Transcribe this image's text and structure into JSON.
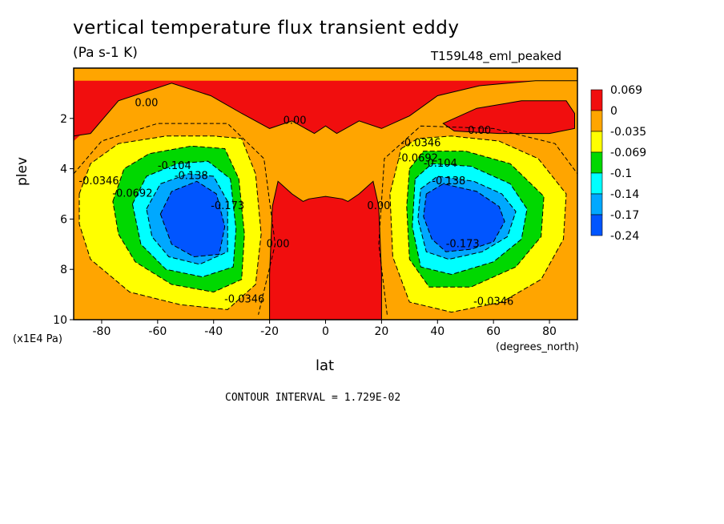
{
  "header": {
    "title": "vertical temperature flux transient eddy",
    "units": "(Pa s-1 K)",
    "run_id": "T159L48_eml_peaked"
  },
  "axes": {
    "ylabel": "plev",
    "yunit": "(x1E4 Pa)",
    "xlabel": "lat",
    "xunit": "(degrees_north)"
  },
  "footer": {
    "contour_interval": "CONTOUR INTERVAL = 1.729E-02"
  },
  "colors": {
    "red": "#f10e0e",
    "orange": "#ffa500",
    "yellow": "#ffff00",
    "green": "#00d800",
    "cyan": "#00ffff",
    "lightblue": "#00a8ff",
    "blue": "#0055ff"
  },
  "chart_data": {
    "type": "contour",
    "title": "vertical temperature flux transient eddy",
    "variable_units": "(Pa s-1 K)",
    "xlabel": "lat",
    "x_units": "(degrees_north)",
    "ylabel": "plev",
    "y_units": "(x1E4 Pa)",
    "xlim": [
      -90,
      90
    ],
    "ylim": [
      10,
      0
    ],
    "x_ticks": [
      -80,
      -60,
      -40,
      -20,
      0,
      20,
      40,
      60,
      80
    ],
    "y_ticks": [
      2,
      4,
      6,
      8,
      10
    ],
    "contour_interval": 0.01729,
    "legend": {
      "placement": "right",
      "labels": [
        "0.069",
        "0",
        "-0.035",
        "-0.069",
        "-0.1",
        "-0.14",
        "-0.17",
        "-0.24"
      ],
      "colors": [
        "#f10e0e",
        "#ffa500",
        "#ffff00",
        "#00d800",
        "#00ffff",
        "#00a8ff",
        "#0055ff"
      ]
    },
    "contour_labels": [
      {
        "text": "0.00",
        "lat": -64,
        "plev": 1.4
      },
      {
        "text": "0.00",
        "lat": -11,
        "plev": 2.1
      },
      {
        "text": "0.00",
        "lat": 55,
        "plev": 2.5
      },
      {
        "text": "0.00",
        "lat": -17,
        "plev": 7.0
      },
      {
        "text": "0.00",
        "lat": 19,
        "plev": 5.5
      },
      {
        "text": "-0.0346",
        "lat": -81,
        "plev": 4.5
      },
      {
        "text": "-0.0692",
        "lat": -69,
        "plev": 5.0
      },
      {
        "text": "-0.104",
        "lat": -54,
        "plev": 3.9
      },
      {
        "text": "-0.138",
        "lat": -48,
        "plev": 4.3
      },
      {
        "text": "-0.173",
        "lat": -35,
        "plev": 5.5
      },
      {
        "text": "-0.0346",
        "lat": -29,
        "plev": 9.2
      },
      {
        "text": "-0.0346",
        "lat": 34,
        "plev": 3.0
      },
      {
        "text": "-0.0692",
        "lat": 33,
        "plev": 3.6
      },
      {
        "text": "-0.104",
        "lat": 41,
        "plev": 3.8
      },
      {
        "text": "-0.138",
        "lat": 44,
        "plev": 4.5
      },
      {
        "text": "-0.173",
        "lat": 49,
        "plev": 7.0
      },
      {
        "text": "-0.0346",
        "lat": 60,
        "plev": 9.3
      }
    ],
    "features": [
      {
        "sign": "negative",
        "min_contour": "-0.173",
        "center_lat": -45,
        "center_plev": 6
      },
      {
        "sign": "negative",
        "min_contour": "-0.173",
        "center_lat": 45,
        "center_plev": 6
      },
      {
        "sign": "positive",
        "max_contour": "0.069",
        "center_lat": 0,
        "center_plev": 7
      },
      {
        "sign": "positive",
        "max_contour": "0.069",
        "center_lat": 0,
        "center_plev": 1.5
      }
    ]
  }
}
